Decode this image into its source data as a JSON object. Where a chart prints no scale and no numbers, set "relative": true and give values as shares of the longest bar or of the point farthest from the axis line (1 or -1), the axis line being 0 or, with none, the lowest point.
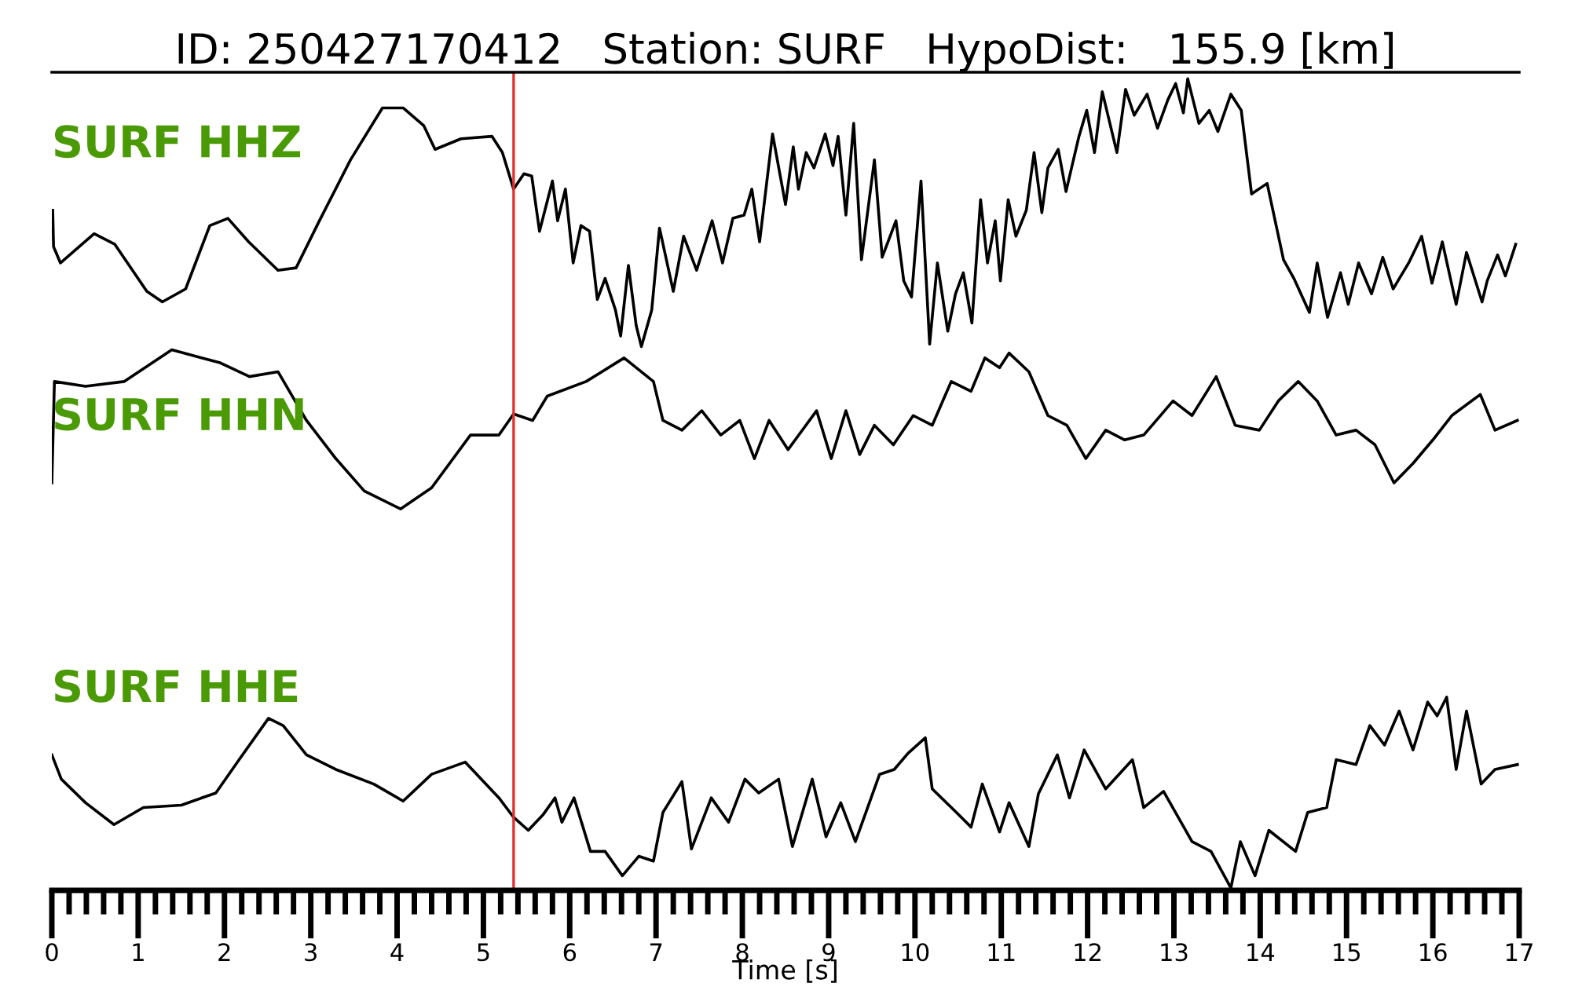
{
  "chart_data": {
    "type": "line",
    "title": "ID: 250427170412   Station: SURF   HypoDist:   155.9 [km]",
    "xlabel": "Time [s]",
    "relative": true,
    "xlim": [
      0,
      17
    ],
    "xticks": [
      0,
      1,
      2,
      3,
      4,
      5,
      6,
      7,
      8,
      9,
      10,
      11,
      12,
      13,
      14,
      15,
      16,
      17
    ],
    "marker": "none",
    "line_style": "solid",
    "ref_lines": [
      {
        "axis": "x",
        "value": 5.35,
        "color": "#e03030"
      }
    ],
    "series": [
      {
        "name": "SURF HHZ",
        "color": "#000000",
        "x": [
          0.01,
          0.02,
          0.1,
          0.49,
          0.73,
          1.1,
          1.28,
          1.55,
          1.83,
          2.04,
          2.28,
          2.62,
          2.83,
          3.1,
          3.46,
          3.83,
          4.07,
          4.31,
          4.44,
          4.74,
          5.1,
          5.22,
          5.35,
          5.47,
          5.56,
          5.65,
          5.8,
          5.86,
          5.95,
          6.04,
          6.13,
          6.23,
          6.32,
          6.41,
          6.53,
          6.59,
          6.68,
          6.77,
          6.83,
          6.95,
          7.04,
          7.2,
          7.32,
          7.47,
          7.65,
          7.77,
          7.89,
          8.02,
          8.11,
          8.2,
          8.35,
          8.5,
          8.59,
          8.65,
          8.74,
          8.83,
          8.96,
          9.05,
          9.11,
          9.2,
          9.29,
          9.38,
          9.53,
          9.62,
          9.78,
          9.87,
          9.96,
          10.07,
          10.17,
          10.26,
          10.38,
          10.47,
          10.56,
          10.66,
          10.76,
          10.84,
          10.93,
          10.99,
          11.08,
          11.17,
          11.29,
          11.38,
          11.47,
          11.54,
          11.66,
          11.75,
          11.9,
          11.99,
          12.08,
          12.17,
          12.34,
          12.44,
          12.54,
          12.69,
          12.81,
          12.93,
          13.02,
          13.11,
          13.16,
          13.29,
          13.41,
          13.51,
          13.66,
          13.78,
          13.9,
          14.08,
          14.27,
          14.39,
          14.57,
          14.66,
          14.78,
          14.93,
          15.02,
          15.14,
          15.29,
          15.42,
          15.54,
          15.72,
          15.87,
          15.99,
          16.11,
          16.27,
          16.39,
          16.57,
          16.63,
          16.75,
          16.84,
          16.96
        ],
        "values": [
          0.838,
          0.793,
          0.773,
          0.809,
          0.796,
          0.738,
          0.725,
          0.741,
          0.819,
          0.828,
          0.799,
          0.764,
          0.767,
          0.825,
          0.9,
          0.964,
          0.964,
          0.942,
          0.913,
          0.926,
          0.929,
          0.909,
          0.864,
          0.883,
          0.88,
          0.812,
          0.874,
          0.825,
          0.864,
          0.773,
          0.819,
          0.812,
          0.728,
          0.754,
          0.715,
          0.683,
          0.77,
          0.696,
          0.67,
          0.715,
          0.816,
          0.738,
          0.806,
          0.764,
          0.825,
          0.773,
          0.828,
          0.832,
          0.864,
          0.799,
          0.932,
          0.845,
          0.916,
          0.864,
          0.909,
          0.89,
          0.932,
          0.893,
          0.929,
          0.832,
          0.945,
          0.777,
          0.9,
          0.78,
          0.825,
          0.751,
          0.731,
          0.874,
          0.673,
          0.773,
          0.689,
          0.735,
          0.761,
          0.699,
          0.851,
          0.773,
          0.825,
          0.751,
          0.851,
          0.806,
          0.838,
          0.909,
          0.835,
          0.89,
          0.913,
          0.861,
          0.929,
          0.961,
          0.909,
          0.984,
          0.909,
          0.987,
          0.955,
          0.981,
          0.939,
          0.974,
          0.994,
          0.958,
          1.0,
          0.945,
          0.961,
          0.935,
          0.981,
          0.961,
          0.858,
          0.871,
          0.777,
          0.754,
          0.712,
          0.773,
          0.706,
          0.761,
          0.722,
          0.773,
          0.735,
          0.78,
          0.741,
          0.773,
          0.806,
          0.748,
          0.799,
          0.722,
          0.786,
          0.725,
          0.751,
          0.783,
          0.757,
          0.796
        ]
      },
      {
        "name": "SURF HHN",
        "color": "#000000",
        "x": [
          0.0,
          0.03,
          0.39,
          0.84,
          1.39,
          1.95,
          2.29,
          2.62,
          2.95,
          3.29,
          3.62,
          4.04,
          4.4,
          4.85,
          5.18,
          5.35,
          5.57,
          5.74,
          6.19,
          6.63,
          6.97,
          7.08,
          7.3,
          7.53,
          7.75,
          7.97,
          8.14,
          8.31,
          8.53,
          8.86,
          9.03,
          9.2,
          9.36,
          9.53,
          9.75,
          9.98,
          10.2,
          10.42,
          10.65,
          10.81,
          10.98,
          11.09,
          11.32,
          11.54,
          11.76,
          11.98,
          12.21,
          12.43,
          12.65,
          12.99,
          13.21,
          13.49,
          13.71,
          13.99,
          14.21,
          14.44,
          14.66,
          14.88,
          15.11,
          15.33,
          15.55,
          15.77,
          16.0,
          16.22,
          16.55,
          16.72,
          16.98
        ],
        "values": [
          0.502,
          0.627,
          0.621,
          0.627,
          0.666,
          0.65,
          0.633,
          0.639,
          0.579,
          0.532,
          0.492,
          0.47,
          0.496,
          0.561,
          0.561,
          0.587,
          0.579,
          0.609,
          0.627,
          0.656,
          0.627,
          0.579,
          0.567,
          0.591,
          0.561,
          0.579,
          0.532,
          0.579,
          0.543,
          0.591,
          0.532,
          0.591,
          0.537,
          0.573,
          0.549,
          0.585,
          0.573,
          0.627,
          0.615,
          0.656,
          0.644,
          0.662,
          0.639,
          0.585,
          0.573,
          0.532,
          0.567,
          0.555,
          0.561,
          0.603,
          0.585,
          0.633,
          0.573,
          0.567,
          0.603,
          0.627,
          0.603,
          0.561,
          0.567,
          0.549,
          0.502,
          0.526,
          0.555,
          0.585,
          0.611,
          0.567,
          0.579
        ]
      },
      {
        "name": "SURF HHE",
        "color": "#000000",
        "x": [
          0.0,
          0.11,
          0.39,
          0.72,
          1.06,
          1.5,
          1.9,
          2.17,
          2.51,
          2.68,
          2.95,
          3.29,
          3.73,
          4.07,
          4.4,
          4.79,
          5.18,
          5.35,
          5.52,
          5.69,
          5.83,
          5.91,
          6.05,
          6.24,
          6.41,
          6.61,
          6.8,
          6.97,
          7.08,
          7.3,
          7.41,
          7.64,
          7.84,
          8.03,
          8.19,
          8.42,
          8.58,
          8.81,
          8.97,
          9.14,
          9.31,
          9.59,
          9.76,
          9.92,
          10.12,
          10.2,
          10.48,
          10.65,
          10.78,
          10.98,
          11.09,
          11.32,
          11.43,
          11.65,
          11.79,
          11.96,
          12.21,
          12.52,
          12.65,
          12.88,
          13.05,
          13.21,
          13.43,
          13.66,
          13.77,
          13.94,
          14.1,
          14.41,
          14.55,
          14.77,
          14.88,
          15.11,
          15.27,
          15.44,
          15.61,
          15.77,
          15.94,
          16.05,
          16.16,
          16.27,
          16.39,
          16.56,
          16.72,
          16.98
        ],
        "values": [
          0.167,
          0.137,
          0.108,
          0.081,
          0.102,
          0.105,
          0.12,
          0.161,
          0.212,
          0.203,
          0.167,
          0.149,
          0.131,
          0.11,
          0.143,
          0.158,
          0.114,
          0.09,
          0.074,
          0.093,
          0.114,
          0.084,
          0.114,
          0.048,
          0.048,
          0.018,
          0.042,
          0.036,
          0.096,
          0.134,
          0.051,
          0.114,
          0.084,
          0.137,
          0.12,
          0.137,
          0.054,
          0.137,
          0.066,
          0.108,
          0.06,
          0.143,
          0.149,
          0.169,
          0.188,
          0.125,
          0.096,
          0.078,
          0.131,
          0.072,
          0.108,
          0.054,
          0.119,
          0.167,
          0.114,
          0.173,
          0.125,
          0.161,
          0.102,
          0.122,
          0.09,
          0.06,
          0.048,
          0.003,
          0.06,
          0.018,
          0.074,
          0.048,
          0.096,
          0.102,
          0.161,
          0.155,
          0.203,
          0.179,
          0.221,
          0.173,
          0.232,
          0.215,
          0.238,
          0.149,
          0.221,
          0.131,
          0.149,
          0.155
        ]
      }
    ]
  }
}
